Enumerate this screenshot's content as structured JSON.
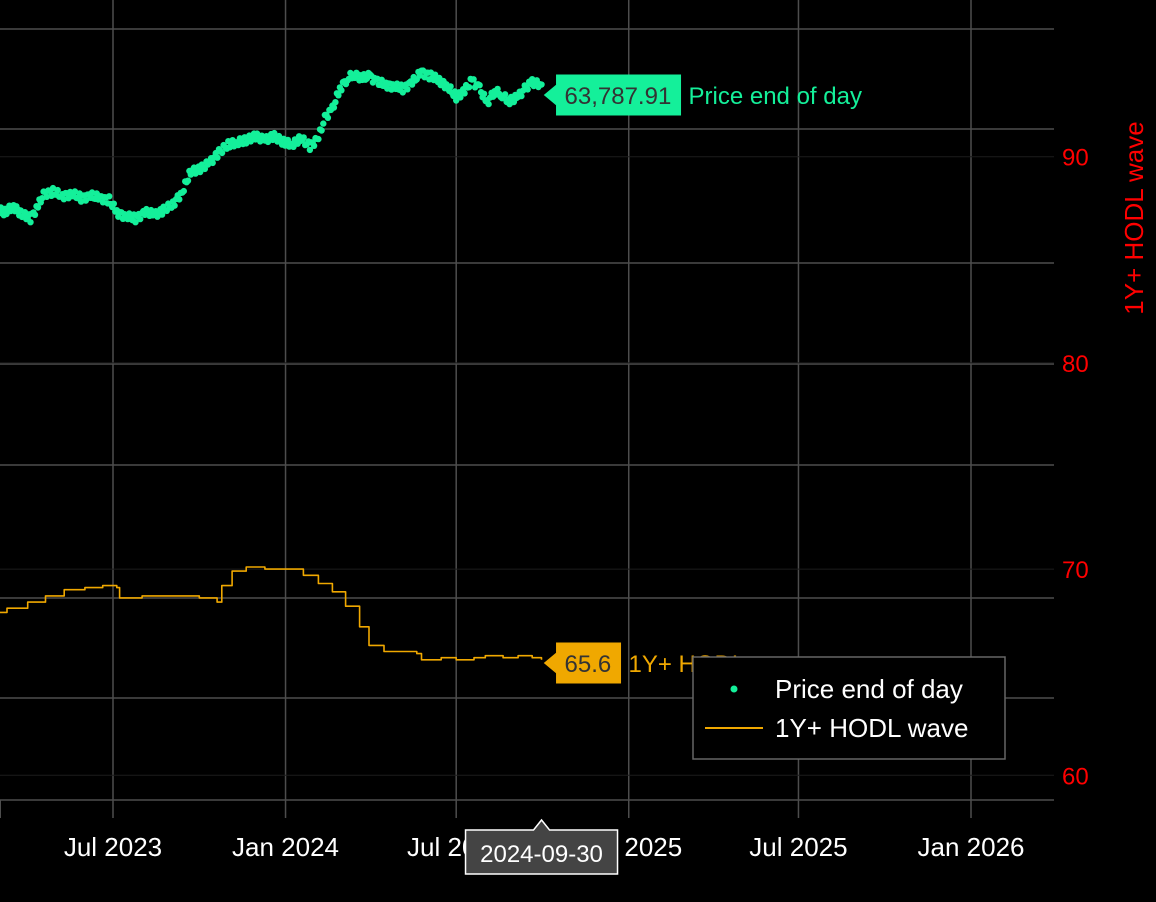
{
  "chart_data": {
    "type": "line",
    "x_axis": {
      "ticks": [
        "Jul 2023",
        "Jan 2024",
        "Jul 2024",
        "Jan 2025",
        "Jul 2025",
        "Jan 2026"
      ],
      "tick_dates": [
        "2023-07-01",
        "2024-01-01",
        "2024-07-01",
        "2025-01-01",
        "2025-07-01",
        "2026-01-01"
      ],
      "range": [
        "2023-01-01",
        "2026-03-01"
      ],
      "grid": true
    },
    "y2_axis": {
      "title": "1Y+ HODL wave",
      "ticks": [
        60,
        70,
        80,
        90
      ],
      "range": [
        58.8,
        97.6
      ],
      "color": "#ff0000",
      "side": "right"
    },
    "series": [
      {
        "name": "Price end of day",
        "mode": "markers",
        "color": "#14f09a",
        "hover_value": "63,787.91",
        "points": [
          [
            "2023-01-01",
            86.0
          ],
          [
            "2023-01-08",
            87.6
          ],
          [
            "2023-01-16",
            87.9
          ],
          [
            "2023-01-24",
            87.6
          ],
          [
            "2023-02-01",
            88.2
          ],
          [
            "2023-02-09",
            87.8
          ],
          [
            "2023-02-18",
            87.4
          ],
          [
            "2023-02-27",
            87.5
          ],
          [
            "2023-03-08",
            87.3
          ],
          [
            "2023-03-17",
            87.6
          ],
          [
            "2023-03-26",
            87.2
          ],
          [
            "2023-04-04",
            87.0
          ],
          [
            "2023-04-12",
            87.6
          ],
          [
            "2023-04-18",
            88.2
          ],
          [
            "2023-04-28",
            88.3
          ],
          [
            "2023-05-08",
            88.1
          ],
          [
            "2023-05-18",
            88.2
          ],
          [
            "2023-05-28",
            88.0
          ],
          [
            "2023-06-07",
            88.1
          ],
          [
            "2023-06-17",
            88.0
          ],
          [
            "2023-06-27",
            87.9
          ],
          [
            "2023-07-05",
            87.3
          ],
          [
            "2023-07-15",
            87.1
          ],
          [
            "2023-07-25",
            87.0
          ],
          [
            "2023-08-04",
            87.3
          ],
          [
            "2023-08-14",
            87.2
          ],
          [
            "2023-08-24",
            87.4
          ],
          [
            "2023-09-03",
            87.7
          ],
          [
            "2023-09-13",
            88.3
          ],
          [
            "2023-09-22",
            89.3
          ],
          [
            "2023-10-02",
            89.4
          ],
          [
            "2023-10-12",
            89.7
          ],
          [
            "2023-10-22",
            90.2
          ],
          [
            "2023-11-01",
            90.6
          ],
          [
            "2023-11-10",
            90.7
          ],
          [
            "2023-11-20",
            90.8
          ],
          [
            "2023-11-30",
            91.0
          ],
          [
            "2023-12-10",
            90.8
          ],
          [
            "2023-12-20",
            91.0
          ],
          [
            "2023-12-30",
            90.7
          ],
          [
            "2024-01-08",
            90.6
          ],
          [
            "2024-01-17",
            90.9
          ],
          [
            "2024-01-27",
            90.5
          ],
          [
            "2024-02-05",
            90.9
          ],
          [
            "2024-02-12",
            91.9
          ],
          [
            "2024-02-20",
            92.3
          ],
          [
            "2024-02-28",
            93.3
          ],
          [
            "2024-03-07",
            93.8
          ],
          [
            "2024-03-15",
            94.0
          ],
          [
            "2024-03-23",
            93.8
          ],
          [
            "2024-03-31",
            93.9
          ],
          [
            "2024-04-08",
            93.6
          ],
          [
            "2024-04-17",
            93.5
          ],
          [
            "2024-04-26",
            93.4
          ],
          [
            "2024-05-05",
            93.3
          ],
          [
            "2024-05-15",
            93.6
          ],
          [
            "2024-05-25",
            94.1
          ],
          [
            "2024-06-04",
            93.9
          ],
          [
            "2024-06-13",
            93.7
          ],
          [
            "2024-06-22",
            93.4
          ],
          [
            "2024-07-01",
            92.9
          ],
          [
            "2024-07-10",
            93.2
          ],
          [
            "2024-07-18",
            93.7
          ],
          [
            "2024-07-26",
            93.3
          ],
          [
            "2024-08-03",
            92.6
          ],
          [
            "2024-08-11",
            93.2
          ],
          [
            "2024-08-19",
            93.0
          ],
          [
            "2024-08-27",
            92.7
          ],
          [
            "2024-09-05",
            92.9
          ],
          [
            "2024-09-12",
            93.3
          ],
          [
            "2024-09-20",
            93.6
          ],
          [
            "2024-09-30",
            93.5
          ]
        ]
      },
      {
        "name": "1Y+ HODL wave",
        "mode": "lines",
        "color": "#f0a800",
        "hover_value": "65.6",
        "points": [
          [
            "2023-01-01",
            67.9
          ],
          [
            "2023-01-15",
            68.1
          ],
          [
            "2023-01-22",
            67.4
          ],
          [
            "2023-02-05",
            67.4
          ],
          [
            "2023-02-20",
            67.9
          ],
          [
            "2023-03-10",
            68.1
          ],
          [
            "2023-04-01",
            68.4
          ],
          [
            "2023-04-20",
            68.7
          ],
          [
            "2023-05-10",
            69.0
          ],
          [
            "2023-06-01",
            69.1
          ],
          [
            "2023-06-20",
            69.2
          ],
          [
            "2023-07-05",
            69.1
          ],
          [
            "2023-07-08",
            68.6
          ],
          [
            "2023-08-01",
            68.7
          ],
          [
            "2023-09-01",
            68.7
          ],
          [
            "2023-10-01",
            68.6
          ],
          [
            "2023-10-20",
            68.4
          ],
          [
            "2023-10-25",
            69.2
          ],
          [
            "2023-11-05",
            69.9
          ],
          [
            "2023-11-20",
            70.1
          ],
          [
            "2023-12-10",
            70.0
          ],
          [
            "2024-01-01",
            70.0
          ],
          [
            "2024-01-20",
            69.7
          ],
          [
            "2024-02-05",
            69.3
          ],
          [
            "2024-02-20",
            68.9
          ],
          [
            "2024-03-05",
            68.2
          ],
          [
            "2024-03-20",
            67.2
          ],
          [
            "2024-03-30",
            66.3
          ],
          [
            "2024-04-15",
            66.0
          ],
          [
            "2024-05-01",
            66.0
          ],
          [
            "2024-05-20",
            65.9
          ],
          [
            "2024-05-25",
            65.6
          ],
          [
            "2024-06-15",
            65.7
          ],
          [
            "2024-07-01",
            65.6
          ],
          [
            "2024-07-20",
            65.7
          ],
          [
            "2024-08-01",
            65.8
          ],
          [
            "2024-08-20",
            65.7
          ],
          [
            "2024-09-05",
            65.8
          ],
          [
            "2024-09-20",
            65.7
          ],
          [
            "2024-09-30",
            65.6
          ]
        ]
      }
    ],
    "legend": {
      "position": "bottom-right",
      "entries": [
        "Price end of day",
        "1Y+ HODL wave"
      ]
    },
    "hover_x_label": "2024-09-30"
  }
}
